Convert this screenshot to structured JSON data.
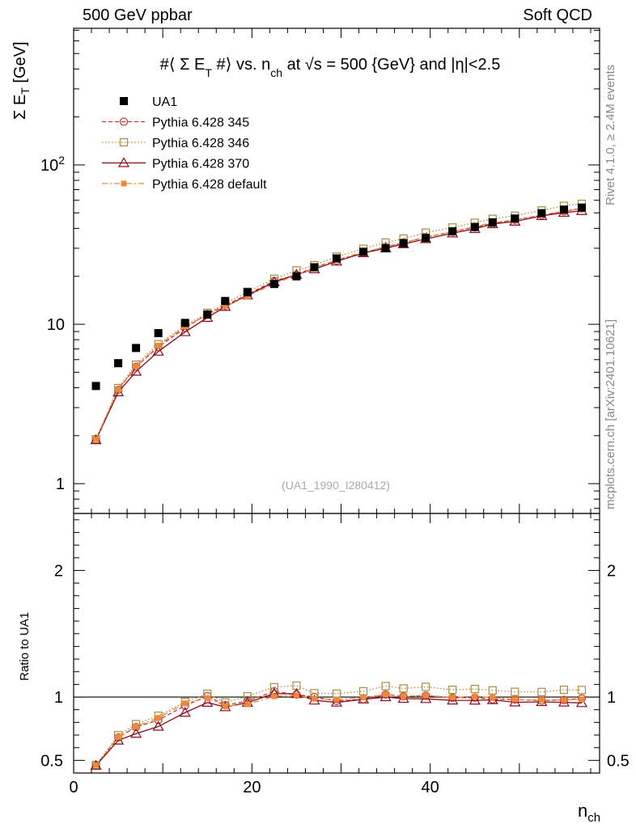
{
  "header": {
    "left": "500 GeV ppbar",
    "right": "Soft QCD"
  },
  "side_labels": {
    "rivet": "Rivet 4.1.0, ≥ 2.4M events",
    "mcplots": "mcplots.cern.ch [arXiv:2401.10621]"
  },
  "colors": {
    "data": "#000000",
    "pythia345": "#c0393b",
    "pythia346": "#a88b3f",
    "pythia370": "#8b0a1a",
    "default": "#f0883a"
  },
  "chart_data": {
    "type": "scatter",
    "title": "#⟨ Σ E_T #⟩ vs. n_ch at √s = 500 {GeV} and |η|<2.5",
    "title_parts": {
      "p1": "#⟨ Σ E",
      "sub1": "T",
      "p2": " #⟩ vs. n",
      "sub2": "ch",
      "p3": " at √s = 500 {GeV} and |η|<2.5"
    },
    "analysis_id": "(UA1_1990_I280412)",
    "xlabel": {
      "main": "n",
      "sub": "ch"
    },
    "ylabel": {
      "main": "Σ E",
      "sub": "T",
      "unit": " [GeV]"
    },
    "ratio_ylabel": "Ratio to UA1",
    "xlim": [
      0,
      59
    ],
    "ylim": [
      0.65,
      720
    ],
    "yscale": "log",
    "ratio_ylim": [
      0.4,
      2.45
    ],
    "x_ticks": [
      0,
      20,
      40
    ],
    "y_tick_labels": {
      "1": "1",
      "10": "10",
      "100": "10^2"
    },
    "ratio_ticks": [
      0.5,
      1,
      2
    ],
    "x": [
      2.5,
      5,
      7,
      9.5,
      12.5,
      15,
      17,
      19.5,
      22.5,
      25,
      27,
      29.5,
      32.5,
      35,
      37,
      39.5,
      42.5,
      45,
      47,
      49.5,
      52.5,
      55,
      57
    ],
    "series": [
      {
        "name": "UA1",
        "key": "data",
        "marker": "filled-square",
        "line": "none",
        "values": [
          4.1,
          5.7,
          7.1,
          8.8,
          10.2,
          11.5,
          14.0,
          15.9,
          17.9,
          20.0,
          22.8,
          25.9,
          28.5,
          30.0,
          32.3,
          34.8,
          38.3,
          40.8,
          43.6,
          46.1,
          49.8,
          52.4,
          54.0
        ]
      },
      {
        "name": "Pythia 6.428 345",
        "key": "pythia345",
        "marker": "open-circle",
        "line": "dashed",
        "values": [
          1.88,
          3.88,
          5.42,
          7.2,
          9.5,
          11.6,
          13.1,
          15.4,
          18.7,
          20.4,
          22.8,
          25.1,
          28.0,
          30.6,
          32.5,
          35.2,
          38.1,
          40.6,
          42.8,
          45.2,
          48.4,
          51.2,
          53.4
        ]
      },
      {
        "name": "Pythia 6.428 346",
        "key": "pythia346",
        "marker": "open-square",
        "line": "dotted",
        "values": [
          1.9,
          3.98,
          5.58,
          7.5,
          9.8,
          11.8,
          13.4,
          16.0,
          19.3,
          21.8,
          23.5,
          26.6,
          29.8,
          32.6,
          34.5,
          37.6,
          40.5,
          43.4,
          45.9,
          48.0,
          51.8,
          55.4,
          57.0
        ]
      },
      {
        "name": "Pythia 6.428 370",
        "key": "pythia370",
        "marker": "open-triangle",
        "line": "solid",
        "values": [
          1.88,
          3.75,
          5.05,
          6.75,
          8.95,
          11.0,
          12.9,
          15.2,
          18.4,
          20.5,
          22.2,
          24.8,
          28.0,
          30.0,
          31.9,
          34.3,
          37.3,
          39.7,
          42.6,
          44.2,
          47.9,
          50.2,
          51.5
        ]
      },
      {
        "name": "Pythia 6.428 default",
        "key": "default",
        "marker": "filled-small-square",
        "line": "dashdot",
        "values": [
          1.9,
          3.9,
          5.45,
          7.35,
          9.7,
          11.4,
          13.0,
          15.0,
          18.0,
          20.3,
          22.5,
          25.4,
          28.4,
          30.6,
          32.5,
          35.2,
          38.2,
          41.0,
          43.5,
          45.2,
          48.6,
          51.2,
          53.0
        ]
      }
    ]
  }
}
